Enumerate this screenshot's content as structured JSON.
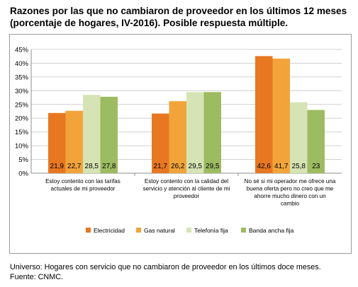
{
  "title_line1": "Razones por las que no cambiaron de proveedor en los últimos 12 meses",
  "title_line2": "(porcentaje de hogares, IV-2016). Posible respuesta múltiple.",
  "footer": {
    "universe": "Universo: Hogares con servicio que no cambiaron de proveedor en los últimos doce meses.",
    "source": "Fuente: CNMC."
  },
  "chart_data": {
    "type": "bar",
    "categories": [
      [
        "Estoy contento con las tarifas",
        "actuales de mi proveedor"
      ],
      [
        "Estoy contento con la calidad del",
        "servicio y atención al cliente de mi",
        "proveedor"
      ],
      [
        "No sé si mi operador me ofrece una",
        "buena oferta pero no creo que me",
        "ahorre mucho dinero con un",
        "cambio"
      ]
    ],
    "series": [
      {
        "name": "Electricidad",
        "values": [
          21.9,
          21.7,
          42.6
        ],
        "labels": [
          "21,9",
          "21,7",
          "42,6"
        ],
        "color": "#e87722"
      },
      {
        "name": "Gas natural",
        "values": [
          22.7,
          26.2,
          41.7
        ],
        "labels": [
          "22,7",
          "26,2",
          "41,7"
        ],
        "color": "#f2a43a"
      },
      {
        "name": "Telefonía fija",
        "values": [
          28.5,
          29.5,
          25.8
        ],
        "labels": [
          "28,5",
          "29,5",
          "25,8"
        ],
        "color": "#d6e4b5"
      },
      {
        "name": "Banda ancha fija",
        "values": [
          27.8,
          29.5,
          23.0
        ],
        "labels": [
          "27,8",
          "29,5",
          "23"
        ],
        "color": "#9dbb61"
      }
    ],
    "yticks": [
      "0%",
      "5%",
      "10%",
      "15%",
      "20%",
      "25%",
      "30%",
      "35%",
      "40%",
      "45%"
    ],
    "ylim": [
      0,
      45
    ],
    "grid": true,
    "legend": "bottom"
  }
}
